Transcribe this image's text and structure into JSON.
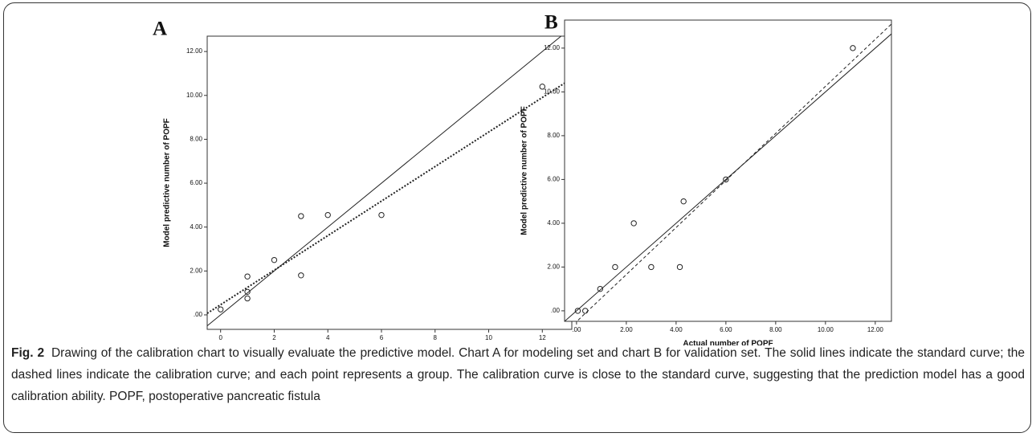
{
  "chart_data": [
    {
      "type": "scatter",
      "title": "A",
      "x_label": "Actual number of POPF",
      "y_label": "Model predictive number of POPF",
      "x": [
        0,
        1,
        1,
        1,
        2,
        3,
        3,
        4,
        6,
        12
      ],
      "values": [
        0.25,
        1.75,
        1.05,
        0.75,
        2.5,
        4.5,
        1.8,
        4.55,
        4.55,
        10.4
      ],
      "xlim": [
        -0.5,
        13.1
      ],
      "ylim": [
        -0.66,
        12.7
      ],
      "xticks": [
        0,
        2,
        4,
        6,
        8,
        10,
        12
      ],
      "yticks": [
        {
          "value": 0,
          "label": ".00"
        },
        {
          "value": 2,
          "label": "2.00"
        },
        {
          "value": 4,
          "label": "4.00"
        },
        {
          "value": 6,
          "label": "6.00"
        },
        {
          "value": 8,
          "label": "8.00"
        },
        {
          "value": 10,
          "label": "10.00"
        },
        {
          "value": 12,
          "label": "12.00"
        }
      ],
      "lines": [
        {
          "style": "solid",
          "x": [
            -0.5,
            13.1
          ],
          "y": [
            -0.5,
            13.1
          ]
        },
        {
          "style": "dotted",
          "x": [
            -0.5,
            13.1
          ],
          "y": [
            0.07,
            10.77
          ]
        }
      ]
    },
    {
      "type": "scatter",
      "title": "B",
      "x_label": "Actual number of POPF",
      "y_label": "Model predictive number of POPF",
      "x": [
        0.05,
        0.35,
        0.95,
        1.55,
        2.3,
        3.0,
        4.15,
        4.3,
        6.0,
        11.1
      ],
      "values": [
        0,
        0,
        1,
        2,
        4,
        2,
        2,
        5,
        6,
        12
      ],
      "xlim": [
        -0.48,
        12.65
      ],
      "ylim": [
        -0.48,
        13.28
      ],
      "xticks": [
        {
          "value": 0,
          "label": ".00"
        },
        {
          "value": 2,
          "label": "2.00"
        },
        {
          "value": 4,
          "label": "4.00"
        },
        {
          "value": 6,
          "label": "6.00"
        },
        {
          "value": 8,
          "label": "8.00"
        },
        {
          "value": 10,
          "label": "10.00"
        },
        {
          "value": 12,
          "label": "12.00"
        }
      ],
      "yticks": [
        {
          "value": 0,
          "label": ".00"
        },
        {
          "value": 2,
          "label": "2.00"
        },
        {
          "value": 4,
          "label": "4.00"
        },
        {
          "value": 6,
          "label": "6.00"
        },
        {
          "value": 8,
          "label": "8.00"
        },
        {
          "value": 10,
          "label": "10.00"
        },
        {
          "value": 12,
          "label": "12.00"
        }
      ],
      "lines": [
        {
          "style": "solid",
          "x": [
            -0.48,
            12.65
          ],
          "y": [
            -0.48,
            12.65
          ]
        },
        {
          "style": "dashed",
          "x": [
            -0.1,
            12.65
          ],
          "y": [
            -0.6,
            13.1
          ]
        }
      ]
    }
  ],
  "caption": {
    "label": "Fig. 2",
    "text": "Drawing of the calibration chart to visually evaluate the predictive model. Chart A for modeling set and chart B for validation set. The solid lines indicate the standard curve; the dashed lines indicate the calibration curve; and each point represents a group. The calibration curve is close to the standard curve, suggesting that the prediction model has a good calibration ability. POPF, postoperative pancreatic fistula"
  }
}
